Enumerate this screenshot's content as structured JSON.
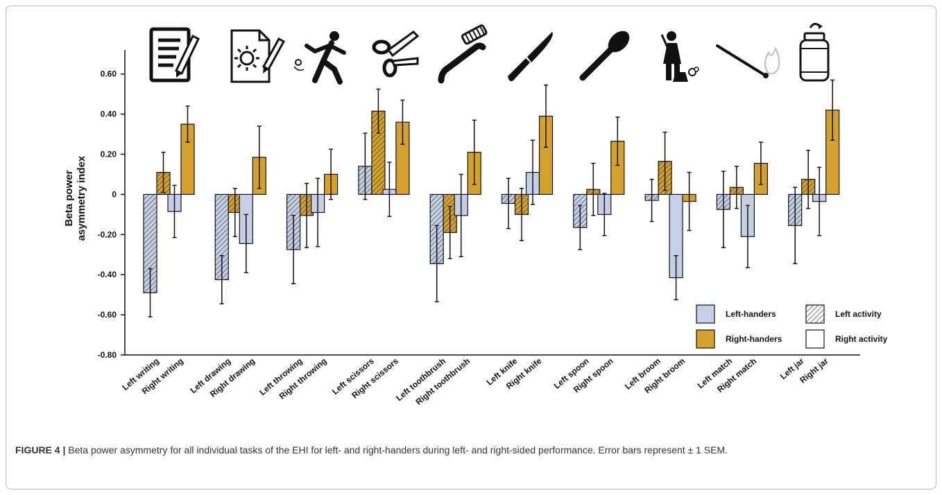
{
  "chart_data": {
    "type": "bar",
    "ylabel": [
      "Beta power",
      "asymmetry index"
    ],
    "ylim": [
      -0.8,
      0.72
    ],
    "yticks": [
      0.6,
      0.4,
      0.2,
      0,
      -0.2,
      -0.4,
      -0.6,
      -0.8
    ],
    "ytick_labels": [
      "0.60",
      "0.40",
      "0.20",
      "0",
      "-0.20",
      "-0.40",
      "-0.60",
      "-0.80"
    ],
    "categories": [
      "Left writing",
      "Right writing",
      "Left drawing",
      "Right drawing",
      "Left throwing",
      "Right throwing",
      "Left scissors",
      "Right scissors",
      "Left toothbrush",
      "Right toothbrush",
      "Left knife",
      "Right knife",
      "Left spoon",
      "Right spoon",
      "Left broom",
      "Right broom",
      "Left match",
      "Right match",
      "Left jar",
      "Right jar"
    ],
    "category_activity": [
      "left",
      "right",
      "left",
      "right",
      "left",
      "right",
      "left",
      "right",
      "left",
      "right",
      "left",
      "right",
      "left",
      "right",
      "left",
      "right",
      "left",
      "right",
      "left",
      "right"
    ],
    "series": [
      {
        "name": "Left-handers",
        "values": [
          -0.49,
          -0.085,
          -0.425,
          -0.245,
          -0.275,
          -0.09,
          0.14,
          0.025,
          -0.345,
          -0.105,
          -0.045,
          0.11,
          -0.165,
          -0.1,
          -0.03,
          -0.415,
          -0.075,
          -0.21,
          -0.155,
          -0.035
        ],
        "errors": [
          0.12,
          0.13,
          0.12,
          0.145,
          0.17,
          0.17,
          0.165,
          0.135,
          0.19,
          0.205,
          0.125,
          0.16,
          0.11,
          0.105,
          0.105,
          0.11,
          0.19,
          0.155,
          0.19,
          0.17
        ]
      },
      {
        "name": "Right-handers",
        "values": [
          0.11,
          0.35,
          -0.09,
          0.185,
          -0.105,
          0.1,
          0.415,
          0.36,
          -0.19,
          0.21,
          -0.1,
          0.39,
          0.025,
          0.265,
          0.165,
          -0.035,
          0.035,
          0.155,
          0.075,
          0.42
        ]
      }
    ],
    "right_handers_errors": [
      0.1,
      0.09,
      0.12,
      0.155,
      0.16,
      0.125,
      0.11,
      0.11,
      0.13,
      0.16,
      0.13,
      0.155,
      0.13,
      0.12,
      0.145,
      0.145,
      0.105,
      0.105,
      0.145,
      0.15
    ],
    "legend": {
      "placement": "bottom-right",
      "entries": [
        {
          "label": "Left-handers",
          "kind": "group",
          "color": "#c5d0e6"
        },
        {
          "label": "Left activity",
          "kind": "hatch",
          "color": "#ffffff"
        },
        {
          "label": "Right-handers",
          "kind": "group",
          "color": "#d4a12a"
        },
        {
          "label": "Right activity",
          "kind": "plain",
          "color": "#ffffff"
        }
      ]
    },
    "icons": [
      "writing-icon",
      "drawing-icon",
      "throwing-icon",
      "scissors-icon",
      "toothbrush-icon",
      "knife-icon",
      "spoon-icon",
      "broom-icon",
      "match-icon",
      "jar-icon"
    ],
    "colors": {
      "left_handers": "#c5d0e6",
      "right_handers": "#d4a12a",
      "outline": "#111111"
    }
  },
  "caption": {
    "label": "FIGURE 4 |",
    "text": " Beta power asymmetry for all individual tasks of the EHI for left- and right-handers during left- and right-sided performance. Error bars represent ± 1 SEM."
  }
}
